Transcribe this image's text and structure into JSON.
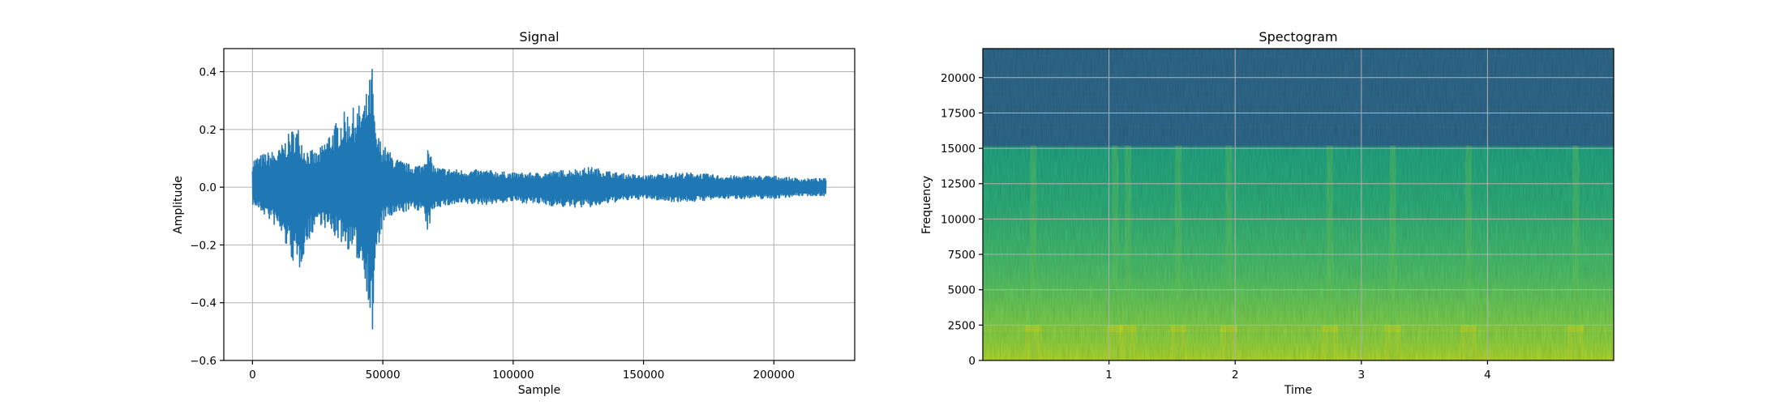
{
  "chart_data": [
    {
      "type": "line",
      "title": "Signal",
      "xlabel": "Sample",
      "ylabel": "Amplitude",
      "xlim": [
        -11000,
        231000
      ],
      "ylim": [
        -0.6,
        0.48
      ],
      "xticks": [
        0,
        50000,
        100000,
        150000,
        200000
      ],
      "xtick_labels": [
        "0",
        "50000",
        "100000",
        "150000",
        "200000"
      ],
      "yticks": [
        -0.6,
        -0.4,
        -0.2,
        0.0,
        0.2,
        0.4
      ],
      "ytick_labels": [
        "−0.6",
        "−0.4",
        "−0.2",
        "0.0",
        "0.2",
        "0.4"
      ],
      "grid": true,
      "color": "#1f77b4",
      "series": [
        {
          "x": [
            0,
            5000,
            10000,
            15000,
            17500,
            20000,
            25000,
            30000,
            35000,
            40000,
            43000,
            45000,
            46000,
            47000,
            50000,
            55000,
            60000,
            65000,
            67000,
            70000,
            80000,
            90000,
            100000,
            110000,
            120000,
            130000,
            140000,
            150000,
            160000,
            170000,
            180000,
            190000,
            200000,
            210000,
            220000
          ],
          "upper": [
            0.1,
            0.12,
            0.13,
            0.2,
            0.21,
            0.14,
            0.12,
            0.2,
            0.26,
            0.28,
            0.3,
            0.38,
            0.43,
            0.2,
            0.15,
            0.1,
            0.08,
            0.08,
            0.14,
            0.07,
            0.06,
            0.06,
            0.05,
            0.05,
            0.06,
            0.07,
            0.05,
            0.04,
            0.05,
            0.05,
            0.04,
            0.04,
            0.04,
            0.03,
            0.03
          ],
          "lower": [
            -0.06,
            -0.1,
            -0.15,
            -0.25,
            -0.31,
            -0.22,
            -0.12,
            -0.16,
            -0.2,
            -0.25,
            -0.3,
            -0.45,
            -0.55,
            -0.3,
            -0.12,
            -0.1,
            -0.08,
            -0.08,
            -0.16,
            -0.07,
            -0.06,
            -0.06,
            -0.05,
            -0.06,
            -0.07,
            -0.07,
            -0.05,
            -0.04,
            -0.05,
            -0.05,
            -0.04,
            -0.04,
            -0.04,
            -0.03,
            -0.03
          ]
        }
      ]
    },
    {
      "type": "heatmap",
      "title": "Spectogram",
      "xlabel": "Time",
      "ylabel": "Frequency",
      "xlim": [
        0,
        5.0
      ],
      "ylim": [
        0,
        22050
      ],
      "xticks": [
        1,
        2,
        3,
        4
      ],
      "xtick_labels": [
        "1",
        "2",
        "3",
        "4"
      ],
      "yticks": [
        0,
        2500,
        5000,
        7500,
        10000,
        12500,
        15000,
        17500,
        20000
      ],
      "ytick_labels": [
        "0",
        "2500",
        "5000",
        "7500",
        "10000",
        "12500",
        "15000",
        "17500",
        "20000"
      ],
      "grid": true,
      "colormap": "viridis",
      "cutoff_frequency": 15200,
      "colors": {
        "high_band": "#2f6a8e",
        "high_band_stripe": "#306f8c",
        "mid_band": "#23a884",
        "low_band": "#6ece58",
        "floor_band": "#dde318"
      },
      "bright_columns": [
        0.4,
        1.05,
        1.15,
        1.55,
        1.95,
        2.75,
        3.25,
        3.85,
        4.7
      ]
    }
  ]
}
